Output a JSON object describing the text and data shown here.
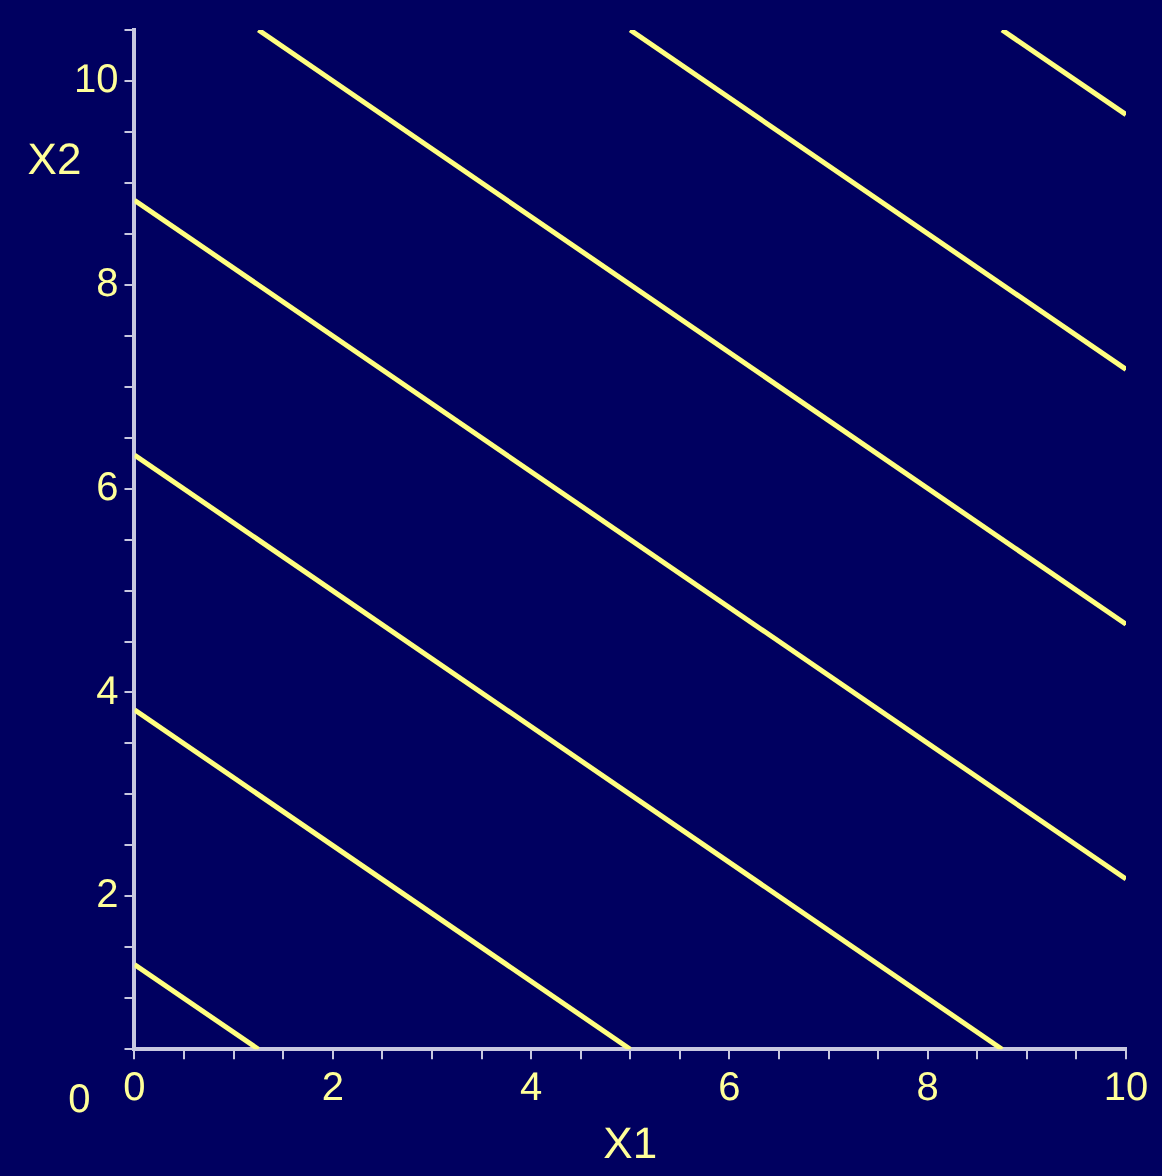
{
  "chart_data": {
    "type": "line",
    "xlabel": "X1",
    "ylabel": "X2",
    "xlim": [
      0,
      10
    ],
    "ylim": [
      0.5,
      10.5
    ],
    "xticks": [
      0,
      {
        "value": 0.5,
        "label": null
      },
      {
        "value": 1,
        "label": null
      },
      {
        "value": 1.5,
        "label": null
      },
      2,
      {
        "value": 2.5,
        "label": null
      },
      {
        "value": 3,
        "label": null
      },
      {
        "value": 3.5,
        "label": null
      },
      4,
      {
        "value": 4.5,
        "label": null
      },
      {
        "value": 5,
        "label": null
      },
      {
        "value": 5.5,
        "label": null
      },
      6,
      {
        "value": 6.5,
        "label": null
      },
      {
        "value": 7,
        "label": null
      },
      {
        "value": 7.5,
        "label": null
      },
      8,
      {
        "value": 8.5,
        "label": null
      },
      {
        "value": 9,
        "label": null
      },
      {
        "value": 9.5,
        "label": null
      },
      10
    ],
    "annotations": [
      "0"
    ],
    "yticks": [
      {
        "value": 0.5,
        "label": null
      },
      {
        "value": 1,
        "label": null
      },
      {
        "value": 1.5,
        "label": null
      },
      2,
      {
        "value": 2.5,
        "label": null
      },
      {
        "value": 3,
        "label": null
      },
      {
        "value": 3.5,
        "label": null
      },
      4,
      {
        "value": 4.5,
        "label": null
      },
      {
        "value": 5,
        "label": null
      },
      {
        "value": 5.5,
        "label": null
      },
      6,
      {
        "value": 6.5,
        "label": null
      },
      {
        "value": 7,
        "label": null
      },
      {
        "value": 7.5,
        "label": null
      },
      8,
      {
        "value": 8.5,
        "label": null
      },
      {
        "value": 9,
        "label": null
      },
      {
        "value": 9.5,
        "label": null
      },
      10,
      {
        "value": 10.5,
        "label": null
      }
    ],
    "series": [
      {
        "color": "#ffff80",
        "x": [
          0,
          1.25
        ],
        "values": [
          1.33,
          0.5
        ]
      },
      {
        "color": "#ffff80",
        "x": [
          0,
          5
        ],
        "values": [
          3.83,
          0.5
        ]
      },
      {
        "color": "#ffff80",
        "x": [
          0,
          8.75
        ],
        "values": [
          6.33,
          0.5
        ]
      },
      {
        "color": "#ffff80",
        "x": [
          0,
          10
        ],
        "values": [
          8.83,
          2.17
        ]
      },
      {
        "color": "#ffff80",
        "x": [
          1.25,
          10
        ],
        "values": [
          10.5,
          4.67
        ]
      },
      {
        "color": "#ffff80",
        "x": [
          5,
          10
        ],
        "values": [
          10.5,
          7.17
        ]
      },
      {
        "color": "#ffff80",
        "x": [
          8.75,
          10
        ],
        "values": [
          10.5,
          9.67
        ]
      }
    ]
  }
}
